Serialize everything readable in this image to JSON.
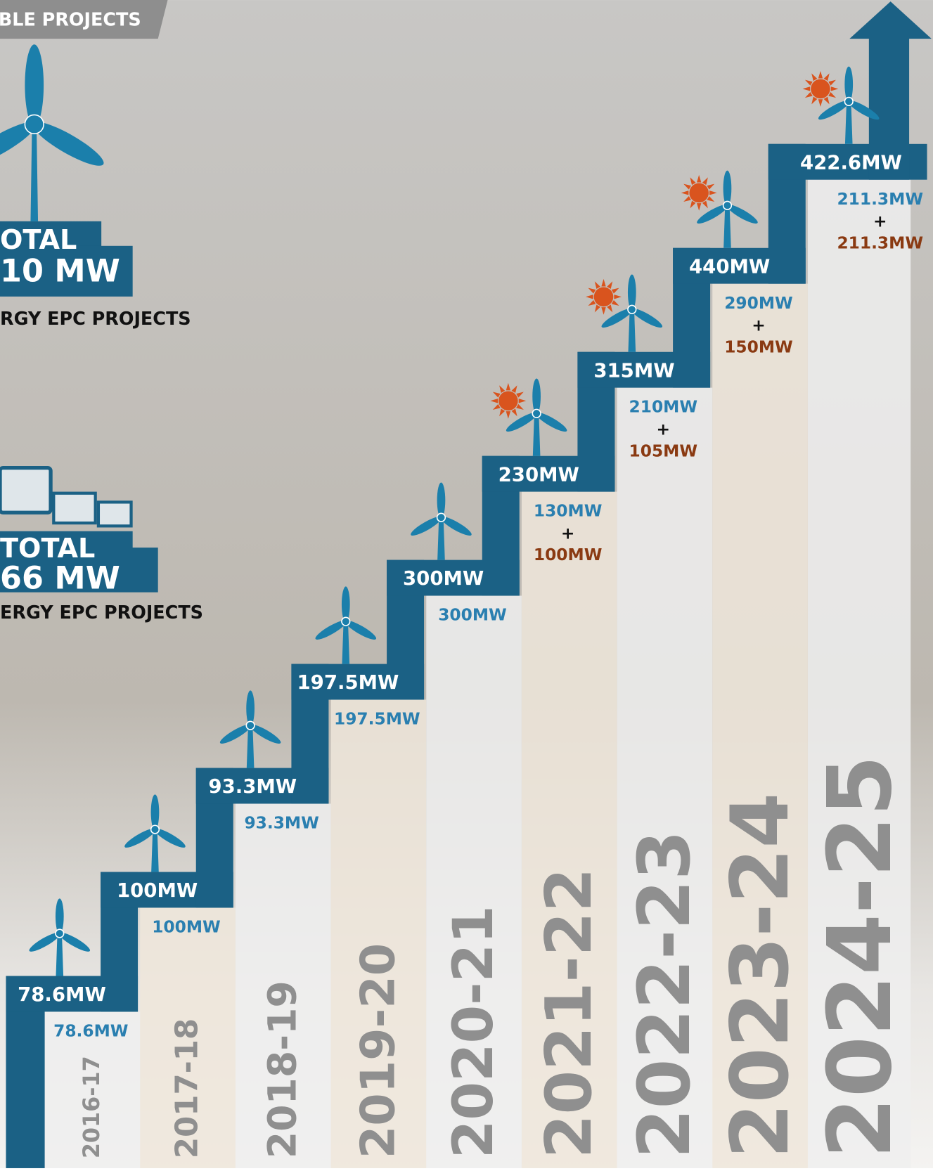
{
  "banner": "BLE PROJECTS",
  "wind_total": {
    "line1": "OTAL",
    "line2": "10 MW",
    "caption": "RGY EPC PROJECTS"
  },
  "solar_total": {
    "line1": "TOTAL",
    "line2": "66 MW",
    "caption": "ERGY EPC PROJECTS"
  },
  "steps": [
    {
      "year": "2016-17",
      "total": "78.6MW",
      "wind": "78.6MW"
    },
    {
      "year": "2017-18",
      "total": "100MW",
      "wind": "100MW"
    },
    {
      "year": "2018-19",
      "total": "93.3MW",
      "wind": "93.3MW"
    },
    {
      "year": "2019-20",
      "total": "197.5MW",
      "wind": "197.5MW"
    },
    {
      "year": "2020-21",
      "total": "300MW",
      "wind": "300MW"
    },
    {
      "year": "2021-22",
      "total": "230MW",
      "wind": "130MW",
      "plus": "+",
      "solar": "100MW"
    },
    {
      "year": "2022-23",
      "total": "315MW",
      "wind": "210MW",
      "plus": "+",
      "solar": "105MW"
    },
    {
      "year": "2023-24",
      "total": "440MW",
      "wind": "290MW",
      "plus": "+",
      "solar": "150MW"
    },
    {
      "year": "2024-25",
      "total": "422.6MW",
      "wind": "211.3MW",
      "plus": "+",
      "solar": "211.3MW"
    }
  ]
}
